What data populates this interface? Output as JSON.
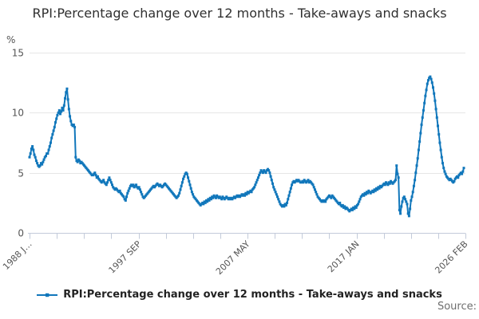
{
  "title": "RPI:Percentage change over 12 months - Take-aways and snacks",
  "legend": {
    "label": "RPI:Percentage change over 12 months - Take-aways and snacks"
  },
  "source_label": "Source:",
  "colors": {
    "line": "#1177bb",
    "gridline": "#e6e6e6",
    "axis": "#c3cbda",
    "tick_label": "#555555"
  },
  "chart_data": {
    "type": "line",
    "title": "RPI:Percentage change over 12 months - Take-aways and snacks",
    "series_name": "RPI:Percentage change over 12 months - Take-aways and snacks",
    "ylabel": "%",
    "ylim": [
      0,
      15
    ],
    "y_ticks": [
      0,
      5,
      10,
      15
    ],
    "grid": "horizontal-only",
    "legend_position": "bottom-center",
    "line_color": "#1177bb",
    "marker": "square",
    "frequency": "monthly",
    "start": "1988-06",
    "end": "2026-02",
    "x_minor_tick_count": 17,
    "x_tick_labels": [
      {
        "label": "1988 J…",
        "tick_index": 0
      },
      {
        "label": "1997 SEP",
        "tick_index": 4
      },
      {
        "label": "2007 MAY",
        "tick_index": 8
      },
      {
        "label": "2017 JAN",
        "tick_index": 12
      },
      {
        "label": "2026 FEB",
        "tick_index": 16
      }
    ],
    "values_by_year": {
      "1988": [
        6.3,
        6.6,
        7.0,
        7.2,
        6.9,
        6.5,
        6.3
      ],
      "1989": [
        6.0,
        5.8,
        5.6,
        5.5,
        5.6,
        5.8,
        5.7,
        5.9,
        6.1,
        6.3,
        6.4,
        6.6
      ],
      "1990": [
        6.6,
        6.9,
        7.2,
        7.5,
        7.9,
        8.2,
        8.5,
        8.8,
        9.2,
        9.5,
        9.8,
        10.0
      ],
      "1991": [
        10.2,
        9.9,
        10.1,
        10.4,
        10.2,
        10.6,
        11.2,
        11.7,
        12.0,
        11.1,
        10.3,
        9.7
      ],
      "1992": [
        9.3,
        9.0,
        8.9,
        9.0,
        8.8,
        6.3,
        6.0,
        5.9,
        6.1,
        6.0,
        5.8,
        5.9
      ],
      "1993": [
        5.8,
        5.7,
        5.6,
        5.5,
        5.4,
        5.3,
        5.2,
        5.1,
        5.0,
        4.9,
        4.8,
        4.8
      ],
      "1994": [
        4.9,
        5.0,
        4.8,
        4.6,
        4.7,
        4.5,
        4.4,
        4.3,
        4.2,
        4.3,
        4.4,
        4.2
      ],
      "1995": [
        4.1,
        4.0,
        4.2,
        4.4,
        4.6,
        4.4,
        4.2,
        4.0,
        3.8,
        3.7,
        3.6,
        3.7
      ],
      "1996": [
        3.6,
        3.5,
        3.4,
        3.5,
        3.3,
        3.2,
        3.1,
        3.0,
        2.8,
        2.7,
        3.0,
        3.3
      ],
      "1997": [
        3.5,
        3.7,
        3.9,
        4.0,
        3.9,
        4.0,
        3.8,
        3.9,
        4.0,
        3.8,
        3.7,
        3.8
      ],
      "1998": [
        3.6,
        3.4,
        3.2,
        3.0,
        2.9,
        3.0,
        3.1,
        3.2,
        3.3,
        3.4,
        3.5,
        3.6
      ],
      "1999": [
        3.7,
        3.8,
        3.9,
        3.8,
        3.9,
        4.0,
        4.1,
        4.0,
        3.9,
        4.0,
        3.9,
        3.8
      ],
      "2000": [
        3.9,
        4.0,
        4.1,
        4.0,
        3.9,
        3.8,
        3.7,
        3.6,
        3.5,
        3.4,
        3.3,
        3.2
      ],
      "2001": [
        3.1,
        3.0,
        2.9,
        3.0,
        3.1,
        3.3,
        3.6,
        3.9,
        4.2,
        4.5,
        4.7,
        4.9
      ],
      "2002": [
        5.0,
        4.9,
        4.6,
        4.3,
        4.0,
        3.7,
        3.4,
        3.2,
        3.0,
        2.9,
        2.8,
        2.7
      ],
      "2003": [
        2.6,
        2.5,
        2.4,
        2.3,
        2.4,
        2.5,
        2.4,
        2.6,
        2.5,
        2.7,
        2.6,
        2.8
      ],
      "2004": [
        2.7,
        2.9,
        2.8,
        3.0,
        2.9,
        3.1,
        3.0,
        2.9,
        3.1,
        3.0,
        2.9,
        3.0
      ],
      "2005": [
        2.9,
        2.8,
        3.0,
        2.9,
        2.8,
        2.9,
        3.0,
        2.9,
        2.8,
        2.9,
        2.8,
        2.9
      ],
      "2006": [
        2.8,
        2.9,
        3.0,
        2.9,
        3.0,
        3.1,
        3.0,
        3.1,
        3.0,
        3.1,
        3.2,
        3.1
      ],
      "2007": [
        3.2,
        3.1,
        3.3,
        3.2,
        3.4,
        3.3,
        3.4,
        3.5,
        3.4,
        3.6,
        3.7,
        3.8
      ],
      "2008": [
        4.0,
        4.2,
        4.4,
        4.6,
        4.8,
        5.0,
        5.2,
        5.1,
        5.0,
        5.2,
        5.1,
        5.0
      ],
      "2009": [
        5.2,
        5.3,
        5.2,
        5.0,
        4.7,
        4.4,
        4.1,
        3.8,
        3.6,
        3.4,
        3.2,
        3.0
      ],
      "2010": [
        2.8,
        2.6,
        2.4,
        2.3,
        2.2,
        2.3,
        2.2,
        2.4,
        2.3,
        2.5,
        2.8,
        3.1
      ],
      "2011": [
        3.4,
        3.7,
        4.0,
        4.2,
        4.3,
        4.2,
        4.3,
        4.4,
        4.3,
        4.4,
        4.3,
        4.2
      ],
      "2012": [
        4.2,
        4.3,
        4.2,
        4.4,
        4.3,
        4.2,
        4.3,
        4.4,
        4.2,
        4.3,
        4.2,
        4.1
      ],
      "2013": [
        4.0,
        3.8,
        3.6,
        3.4,
        3.2,
        3.0,
        2.9,
        2.8,
        2.7,
        2.6,
        2.7,
        2.6
      ],
      "2014": [
        2.7,
        2.6,
        2.8,
        2.9,
        3.0,
        3.1,
        3.0,
        2.9,
        3.1,
        3.0,
        2.9,
        2.8
      ],
      "2015": [
        2.7,
        2.6,
        2.5,
        2.4,
        2.5,
        2.3,
        2.2,
        2.3,
        2.1,
        2.2,
        2.0,
        2.1
      ],
      "2016": [
        2.0,
        1.9,
        1.8,
        1.9,
        2.0,
        1.9,
        2.1,
        2.0,
        2.2,
        2.1,
        2.3,
        2.4
      ],
      "2017": [
        2.6,
        2.8,
        3.0,
        3.1,
        3.2,
        3.1,
        3.3,
        3.2,
        3.4,
        3.3,
        3.5,
        3.4
      ],
      "2018": [
        3.3,
        3.4,
        3.5,
        3.4,
        3.6,
        3.5,
        3.7,
        3.6,
        3.8,
        3.7,
        3.9,
        3.8
      ],
      "2019": [
        3.9,
        4.0,
        4.1,
        4.0,
        4.2,
        4.1,
        4.0,
        4.2,
        4.1,
        4.3,
        4.2,
        4.1
      ],
      "2020": [
        4.2,
        4.3,
        4.4,
        5.6,
        4.9,
        4.6,
        1.9,
        1.6,
        2.2,
        2.6,
        2.9,
        3.0
      ],
      "2021": [
        2.8,
        2.6,
        2.4,
        1.6,
        1.4,
        2.0,
        2.7,
        3.0,
        3.4,
        3.9,
        4.4,
        5.0
      ],
      "2022": [
        5.6,
        6.2,
        6.9,
        7.6,
        8.3,
        9.0,
        9.6,
        10.2,
        10.8,
        11.4,
        11.9,
        12.4
      ],
      "2023": [
        12.7,
        12.9,
        13.0,
        12.8,
        12.5,
        12.1,
        11.6,
        11.0,
        10.3,
        9.6,
        8.9,
        8.2
      ],
      "2024": [
        7.5,
        6.9,
        6.3,
        5.8,
        5.4,
        5.1,
        4.9,
        4.7,
        4.6,
        4.5,
        4.4,
        4.5
      ],
      "2025": [
        4.4,
        4.3,
        4.2,
        4.3,
        4.5,
        4.6,
        4.7,
        4.6,
        4.8,
        4.9,
        5.0,
        4.9
      ],
      "2026": [
        5.1,
        5.4
      ]
    }
  }
}
